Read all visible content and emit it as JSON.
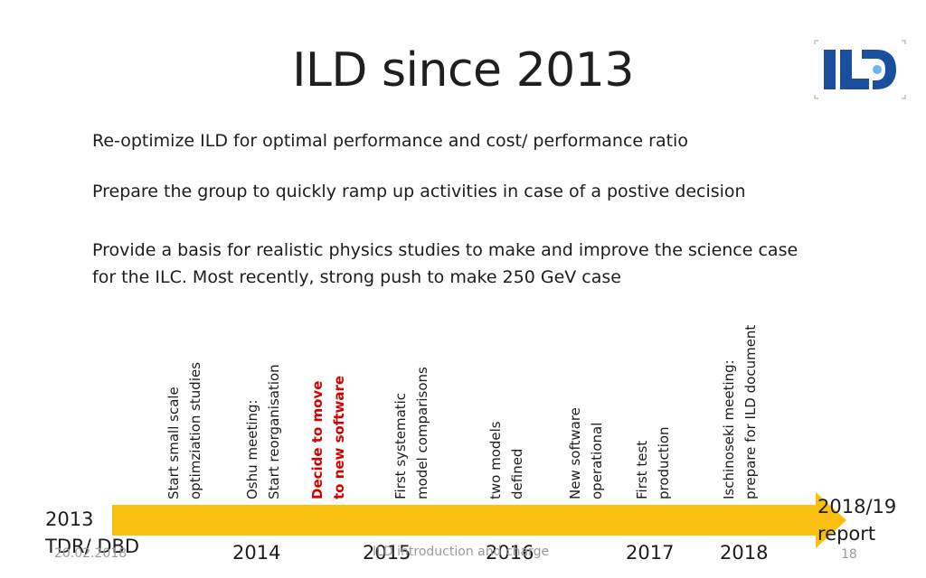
{
  "slide": {
    "title": "ILD since 2013",
    "logo_text": "ILD",
    "bullets": [
      "Re-optimize ILD for optimal performance and cost/ performance ratio",
      "Prepare the group to quickly ramp up activities in case of a postive decision",
      "Provide a basis for realistic physics studies to make and improve the science case for the ILC. Most recently, strong push to make 250 GeV case"
    ]
  },
  "timeline": {
    "start_year": "2013",
    "start_label": "TDR/ DBD",
    "end_year": "2018/19",
    "end_label": "report",
    "years": [
      "2014",
      "2015",
      "2016",
      "2017",
      "2018"
    ],
    "milestones": [
      {
        "line1": "Start small scale",
        "line2": "optimziation studies"
      },
      {
        "line1": "Oshu meeting:",
        "line2": "Start reorganisation"
      },
      {
        "line1": "Decide to move",
        "line2": "to new software"
      },
      {
        "line1": "First systematic",
        "line2": "model comparisons"
      },
      {
        "line1": "two models",
        "line2": "defined"
      },
      {
        "line1": "New software",
        "line2": "operational"
      },
      {
        "line1": "First test",
        "line2": "production"
      },
      {
        "line1": "Ischinoseki meeting:",
        "line2": "prepare for ILD document"
      }
    ]
  },
  "footer": {
    "date": "20.02.2018",
    "center": "ILD introduction and charge",
    "page": "18"
  },
  "colors": {
    "arrow": "#f9c00f",
    "highlight": "#d40000",
    "logo_blue": "#1a4fa0"
  }
}
